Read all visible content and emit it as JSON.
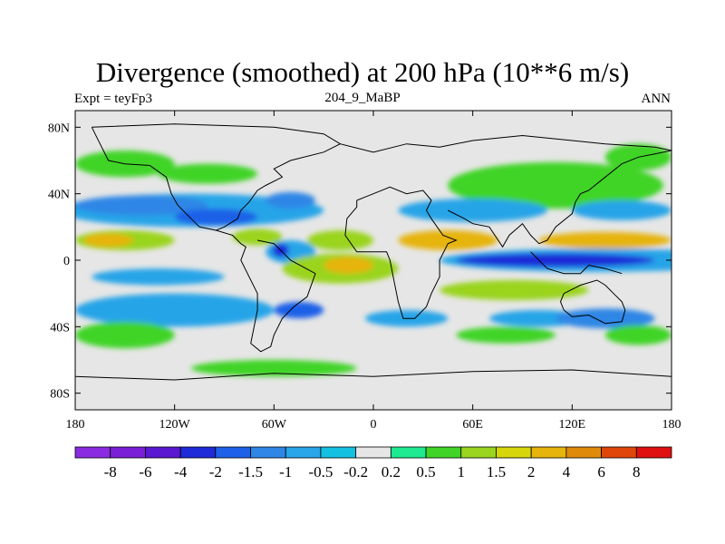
{
  "header": {
    "title": "Divergence (smoothed) at 200 hPa (10**6 m/s)",
    "left": "Expt = teyFp3",
    "center": "204_9_MaBP",
    "right": "ANN"
  },
  "chart_data": {
    "type": "heatmap",
    "variable": "Divergence (smoothed)",
    "level": "200 hPa",
    "units": "10**6 m/s",
    "x_range": [
      -180,
      180
    ],
    "y_range": [
      -90,
      90
    ],
    "xticks": [
      {
        "value": -180,
        "label": "180"
      },
      {
        "value": -120,
        "label": "120W"
      },
      {
        "value": -60,
        "label": "60W"
      },
      {
        "value": 0,
        "label": "0"
      },
      {
        "value": 60,
        "label": "60E"
      },
      {
        "value": 120,
        "label": "120E"
      },
      {
        "value": 180,
        "label": "180"
      }
    ],
    "yticks": [
      {
        "value": 80,
        "label": "80N"
      },
      {
        "value": 40,
        "label": "40N"
      },
      {
        "value": 0,
        "label": "0"
      },
      {
        "value": -40,
        "label": "40S"
      },
      {
        "value": -80,
        "label": "80S"
      }
    ],
    "colorbar": {
      "colors": [
        "#8a2be2",
        "#7a1fd6",
        "#5a18d0",
        "#1f2ad8",
        "#1f60e8",
        "#2f86e6",
        "#28a4e8",
        "#14c0e0",
        "#e6e6e6",
        "#1ee890",
        "#40d428",
        "#9ad41e",
        "#d6d60a",
        "#e6b40a",
        "#e08a0a",
        "#e0460a",
        "#e01010"
      ],
      "labels": [
        "-8",
        "-6",
        "-4",
        "-2",
        "-1.5",
        "-1",
        "-0.5",
        "-0.2",
        "0.2",
        "0.5",
        "1",
        "1.5",
        "2",
        "4",
        "6",
        "8"
      ]
    },
    "regions": [
      {
        "lon": -150,
        "lat": 58,
        "rx": 30,
        "ry": 8,
        "level": 10
      },
      {
        "lon": -100,
        "lat": 52,
        "rx": 30,
        "ry": 6,
        "level": 10
      },
      {
        "lon": 110,
        "lat": 45,
        "rx": 65,
        "ry": 14,
        "level": 10
      },
      {
        "lon": 160,
        "lat": 62,
        "rx": 20,
        "ry": 8,
        "level": 10
      },
      {
        "lon": -110,
        "lat": 30,
        "rx": 80,
        "ry": 10,
        "level": 6
      },
      {
        "lon": -140,
        "lat": 33,
        "rx": 40,
        "ry": 6,
        "level": 5
      },
      {
        "lon": -95,
        "lat": 26,
        "rx": 25,
        "ry": 5,
        "level": 4
      },
      {
        "lon": -50,
        "lat": 36,
        "rx": 15,
        "ry": 5,
        "level": 5
      },
      {
        "lon": 60,
        "lat": 30,
        "rx": 45,
        "ry": 7,
        "level": 6
      },
      {
        "lon": 150,
        "lat": 30,
        "rx": 30,
        "ry": 6,
        "level": 6
      },
      {
        "lon": -150,
        "lat": 12,
        "rx": 30,
        "ry": 6,
        "level": 11
      },
      {
        "lon": -160,
        "lat": 12,
        "rx": 15,
        "ry": 4,
        "level": 13
      },
      {
        "lon": -70,
        "lat": 14,
        "rx": 15,
        "ry": 5,
        "level": 11
      },
      {
        "lon": -20,
        "lat": 12,
        "rx": 20,
        "ry": 6,
        "level": 11
      },
      {
        "lon": 45,
        "lat": 12,
        "rx": 30,
        "ry": 6,
        "level": 13
      },
      {
        "lon": 140,
        "lat": 12,
        "rx": 40,
        "ry": 5,
        "level": 13
      },
      {
        "lon": 135,
        "lat": 0,
        "rx": 95,
        "ry": 7,
        "level": 6
      },
      {
        "lon": 110,
        "lat": 0,
        "rx": 60,
        "ry": 4,
        "level": 3
      },
      {
        "lon": -50,
        "lat": 5,
        "rx": 15,
        "ry": 7,
        "level": 6
      },
      {
        "lon": -56,
        "lat": 6,
        "rx": 5,
        "ry": 4,
        "level": 3
      },
      {
        "lon": -130,
        "lat": -10,
        "rx": 40,
        "ry": 5,
        "level": 6
      },
      {
        "lon": -20,
        "lat": -5,
        "rx": 35,
        "ry": 9,
        "level": 11
      },
      {
        "lon": -15,
        "lat": -3,
        "rx": 15,
        "ry": 5,
        "level": 13
      },
      {
        "lon": 85,
        "lat": -18,
        "rx": 45,
        "ry": 6,
        "level": 11
      },
      {
        "lon": -120,
        "lat": -30,
        "rx": 60,
        "ry": 10,
        "level": 6
      },
      {
        "lon": -45,
        "lat": -30,
        "rx": 15,
        "ry": 5,
        "level": 4
      },
      {
        "lon": 20,
        "lat": -35,
        "rx": 25,
        "ry": 5,
        "level": 6
      },
      {
        "lon": 100,
        "lat": -35,
        "rx": 30,
        "ry": 5,
        "level": 6
      },
      {
        "lon": 140,
        "lat": -35,
        "rx": 30,
        "ry": 6,
        "level": 5
      },
      {
        "lon": -150,
        "lat": -45,
        "rx": 30,
        "ry": 8,
        "level": 10
      },
      {
        "lon": 80,
        "lat": -45,
        "rx": 30,
        "ry": 5,
        "level": 10
      },
      {
        "lon": 160,
        "lat": -45,
        "rx": 20,
        "ry": 6,
        "level": 10
      },
      {
        "lon": -60,
        "lat": -65,
        "rx": 50,
        "ry": 5,
        "level": 10
      }
    ],
    "coastlines": [
      [
        [
          -170,
          80
        ],
        [
          -120,
          82
        ],
        [
          -60,
          80
        ],
        [
          -30,
          76
        ],
        [
          -20,
          70
        ],
        [
          -30,
          65
        ],
        [
          -50,
          60
        ],
        [
          -60,
          55
        ],
        [
          -55,
          50
        ],
        [
          -65,
          45
        ],
        [
          -70,
          42
        ],
        [
          -75,
          35
        ],
        [
          -80,
          30
        ],
        [
          -82,
          25
        ],
        [
          -90,
          20
        ],
        [
          -95,
          18
        ],
        [
          -85,
          15
        ],
        [
          -80,
          10
        ],
        [
          -77,
          8
        ],
        [
          -80,
          0
        ],
        [
          -75,
          -10
        ],
        [
          -70,
          -20
        ],
        [
          -70,
          -30
        ],
        [
          -72,
          -40
        ],
        [
          -74,
          -50
        ],
        [
          -68,
          -55
        ],
        [
          -62,
          -52
        ],
        [
          -60,
          -45
        ],
        [
          -55,
          -35
        ],
        [
          -48,
          -28
        ],
        [
          -40,
          -22
        ],
        [
          -35,
          -8
        ],
        [
          -50,
          0
        ],
        [
          -55,
          5
        ],
        [
          -60,
          10
        ],
        [
          -70,
          12
        ]
      ],
      [
        [
          -170,
          80
        ],
        [
          -165,
          70
        ],
        [
          -160,
          60
        ],
        [
          -150,
          58
        ],
        [
          -135,
          57
        ],
        [
          -125,
          50
        ],
        [
          -122,
          40
        ],
        [
          -118,
          33
        ],
        [
          -110,
          25
        ],
        [
          -105,
          20
        ],
        [
          -95,
          18
        ]
      ],
      [
        [
          -20,
          70
        ],
        [
          0,
          65
        ],
        [
          20,
          70
        ],
        [
          40,
          68
        ],
        [
          60,
          72
        ],
        [
          90,
          75
        ],
        [
          120,
          72
        ],
        [
          140,
          70
        ],
        [
          170,
          68
        ],
        [
          180,
          66
        ]
      ],
      [
        [
          -10,
          36
        ],
        [
          -5,
          38
        ],
        [
          0,
          40
        ],
        [
          10,
          44
        ],
        [
          20,
          40
        ],
        [
          30,
          42
        ],
        [
          35,
          36
        ],
        [
          32,
          30
        ],
        [
          35,
          25
        ],
        [
          42,
          15
        ],
        [
          50,
          12
        ],
        [
          45,
          10
        ],
        [
          40,
          0
        ],
        [
          40,
          -10
        ],
        [
          35,
          -20
        ],
        [
          32,
          -28
        ],
        [
          25,
          -35
        ],
        [
          18,
          -35
        ],
        [
          15,
          -25
        ],
        [
          12,
          -10
        ],
        [
          10,
          0
        ],
        [
          8,
          5
        ],
        [
          0,
          5
        ],
        [
          -10,
          5
        ],
        [
          -17,
          15
        ],
        [
          -16,
          25
        ],
        [
          -10,
          32
        ],
        [
          -10,
          36
        ]
      ],
      [
        [
          45,
          30
        ],
        [
          55,
          25
        ],
        [
          60,
          22
        ],
        [
          70,
          20
        ],
        [
          78,
          8
        ],
        [
          82,
          15
        ],
        [
          90,
          22
        ],
        [
          95,
          15
        ],
        [
          100,
          10
        ],
        [
          105,
          12
        ],
        [
          110,
          20
        ],
        [
          120,
          28
        ],
        [
          122,
          35
        ],
        [
          125,
          40
        ],
        [
          130,
          42
        ],
        [
          140,
          50
        ],
        [
          150,
          58
        ],
        [
          160,
          62
        ],
        [
          170,
          64
        ],
        [
          180,
          66
        ]
      ],
      [
        [
          115,
          -20
        ],
        [
          125,
          -15
        ],
        [
          135,
          -12
        ],
        [
          140,
          -15
        ],
        [
          145,
          -20
        ],
        [
          150,
          -25
        ],
        [
          152,
          -30
        ],
        [
          150,
          -37
        ],
        [
          140,
          -38
        ],
        [
          130,
          -33
        ],
        [
          120,
          -34
        ],
        [
          115,
          -30
        ],
        [
          113,
          -25
        ],
        [
          115,
          -20
        ]
      ],
      [
        [
          -180,
          -70
        ],
        [
          -120,
          -72
        ],
        [
          -60,
          -68
        ],
        [
          0,
          -70
        ],
        [
          60,
          -67
        ],
        [
          120,
          -66
        ],
        [
          180,
          -70
        ]
      ],
      [
        [
          95,
          5
        ],
        [
          105,
          -5
        ],
        [
          115,
          -8
        ],
        [
          125,
          -8
        ],
        [
          130,
          -3
        ],
        [
          140,
          -5
        ],
        [
          150,
          -8
        ]
      ]
    ]
  }
}
